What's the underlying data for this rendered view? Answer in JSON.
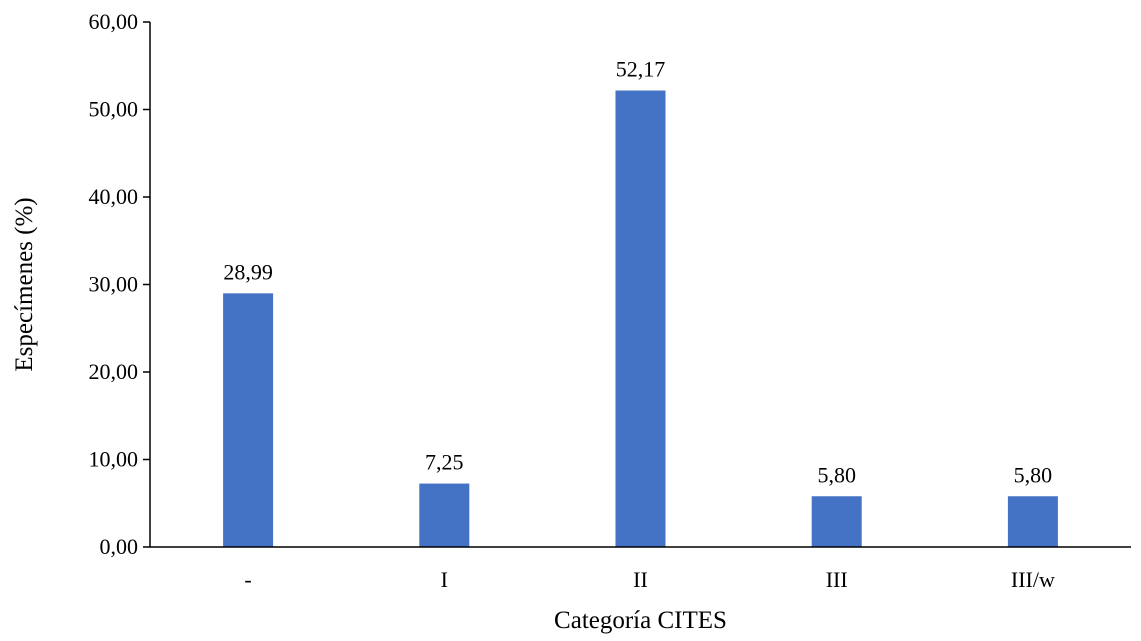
{
  "chart_data": {
    "type": "bar",
    "categories": [
      "-",
      "I",
      "II",
      "III",
      "III/w"
    ],
    "values": [
      28.99,
      7.25,
      52.17,
      5.8,
      5.8
    ],
    "data_labels": [
      "28,99",
      "7,25",
      "52,17",
      "5,80",
      "5,80"
    ],
    "title": "",
    "xlabel": "Categoría CITES",
    "ylabel": "Especímenes (%)",
    "ylim": [
      0,
      60
    ],
    "yticks": [
      0,
      10,
      20,
      30,
      40,
      50,
      60
    ],
    "ytick_labels": [
      "0,00",
      "10,00",
      "20,00",
      "30,00",
      "40,00",
      "50,00",
      "60,00"
    ],
    "grid": false,
    "legend": "none",
    "bar_color": "#4472C4",
    "axis_color": "#000000"
  }
}
